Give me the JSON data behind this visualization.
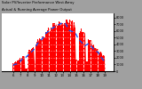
{
  "title_line1": "Solar PV/Inverter Performance West Array",
  "title_line2": "Actual & Running Average Power Output",
  "bar_color": "#ff0000",
  "avg_color": "#0055ff",
  "plot_bg": "#ffffff",
  "outer_bg": "#a0a0a0",
  "n_bars": 144,
  "ylim": [
    0,
    1.08
  ],
  "ylabel_right": [
    "8",
    "7",
    "6",
    "5",
    "4",
    "3",
    "2",
    "1",
    "0"
  ],
  "ylabel_right_full": [
    "8000",
    "7...",
    "6...",
    "5...",
    "4...",
    "3...",
    "2...",
    "1...",
    "0"
  ],
  "xlabel_ticks": [
    "6",
    "7",
    "8",
    "9",
    "10",
    "11",
    "12",
    "13",
    "14",
    "15",
    "16",
    "17",
    "18",
    "19"
  ],
  "grid_color": "#dddddd",
  "vgrid_color": "#ffffff"
}
